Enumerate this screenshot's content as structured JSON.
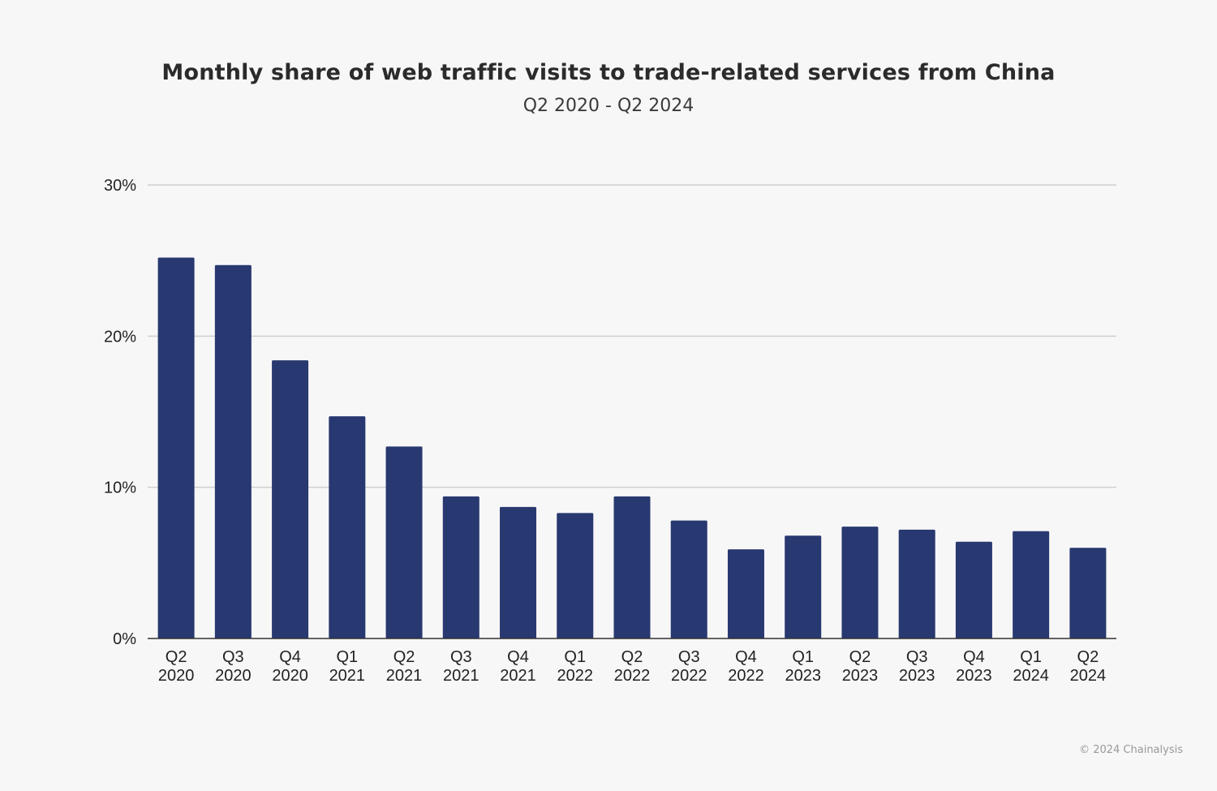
{
  "chart_data": {
    "type": "bar",
    "title": "Monthly share of web traffic visits to trade-related services from China",
    "subtitle": "Q2 2020 - Q2 2024",
    "xlabel": "",
    "ylabel": "",
    "ylim": [
      0,
      30
    ],
    "yticks": [
      0,
      10,
      20,
      30
    ],
    "ytick_labels": [
      "0%",
      "10%",
      "20%",
      "30%"
    ],
    "grid": true,
    "categories": [
      [
        "Q2",
        "2020"
      ],
      [
        "Q3",
        "2020"
      ],
      [
        "Q4",
        "2020"
      ],
      [
        "Q1",
        "2021"
      ],
      [
        "Q2",
        "2021"
      ],
      [
        "Q3",
        "2021"
      ],
      [
        "Q4",
        "2021"
      ],
      [
        "Q1",
        "2022"
      ],
      [
        "Q2",
        "2022"
      ],
      [
        "Q3",
        "2022"
      ],
      [
        "Q4",
        "2022"
      ],
      [
        "Q1",
        "2023"
      ],
      [
        "Q2",
        "2023"
      ],
      [
        "Q3",
        "2023"
      ],
      [
        "Q4",
        "2023"
      ],
      [
        "Q1",
        "2024"
      ],
      [
        "Q2",
        "2024"
      ]
    ],
    "values": [
      25.2,
      24.7,
      18.4,
      14.7,
      12.7,
      9.4,
      8.7,
      8.3,
      9.4,
      7.8,
      5.9,
      6.8,
      7.4,
      7.2,
      6.4,
      7.1,
      6.0
    ],
    "bar_color": "#283870"
  },
  "footer": "© 2024 Chainalysis"
}
